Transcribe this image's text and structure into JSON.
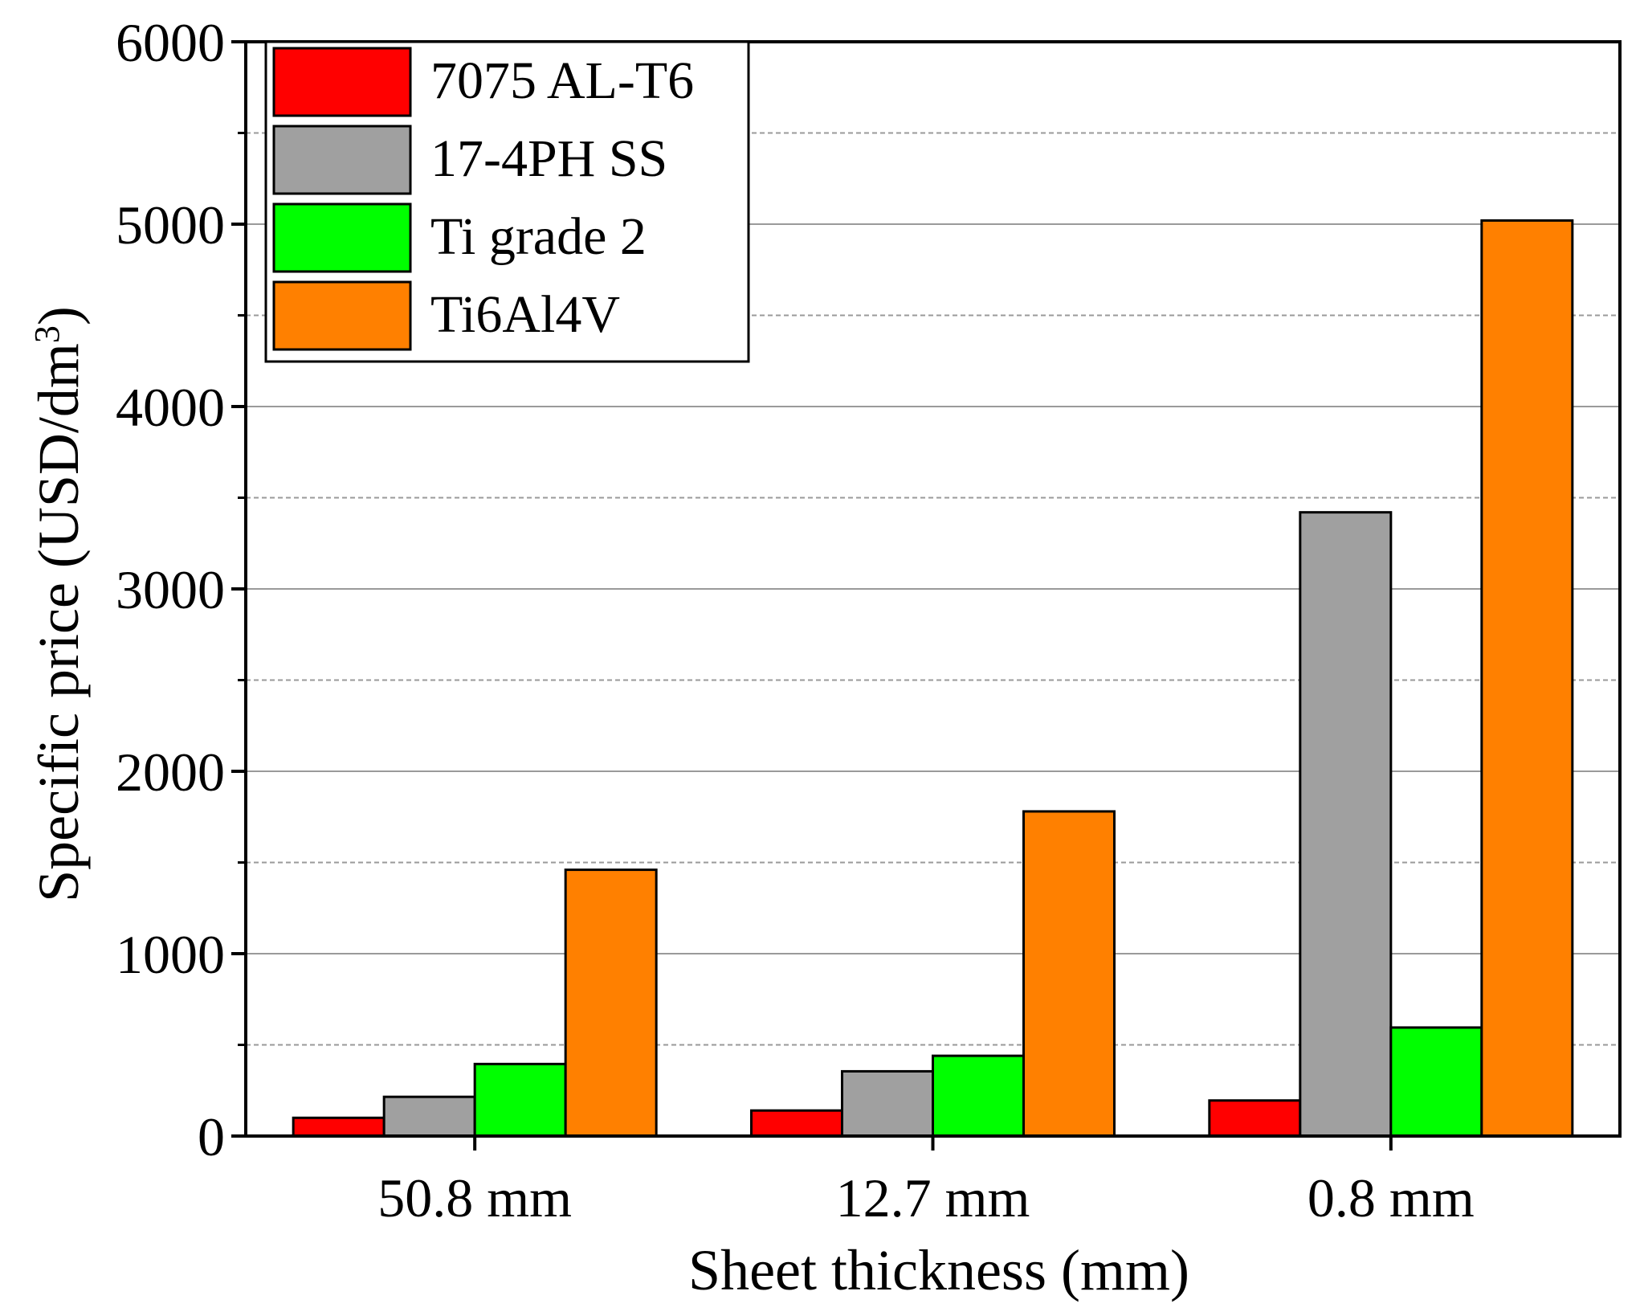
{
  "chart_data": {
    "type": "bar",
    "xlabel": "Sheet thickness (mm)",
    "ylabel": "Specific price (USD/dm",
    "ylabel_superscript": "3",
    "ylabel_close": ")",
    "categories": [
      "50.8 mm",
      "12.7 mm",
      "0.8 mm"
    ],
    "ylim": [
      0,
      6000
    ],
    "major_ticks": [
      0,
      1000,
      2000,
      3000,
      4000,
      5000,
      6000
    ],
    "minor_gridlines": [
      500,
      1500,
      2500,
      3500,
      4500,
      5500
    ],
    "grid": true,
    "legend_position": "top-left",
    "series": [
      {
        "name": "7075 AL-T6",
        "color": "#ff0000",
        "values": [
          100,
          140,
          195
        ]
      },
      {
        "name": "17-4PH SS",
        "color": "#a0a0a0",
        "values": [
          215,
          355,
          3420
        ]
      },
      {
        "name": "Ti grade 2",
        "color": "#00ff00",
        "values": [
          395,
          440,
          595
        ]
      },
      {
        "name": "Ti6Al4V",
        "color": "#ff8000",
        "values": [
          1460,
          1780,
          5020
        ]
      }
    ]
  }
}
